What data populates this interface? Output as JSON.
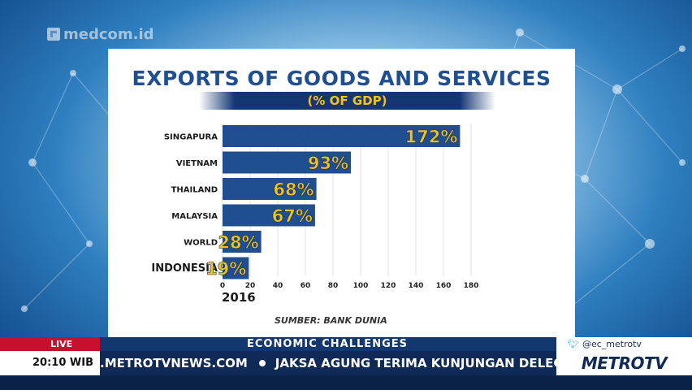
{
  "watermark": "medcom.id",
  "chart_data": {
    "type": "bar",
    "orientation": "horizontal",
    "title": "EXPORTS OF GOODS AND SERVICES",
    "subtitle": "(% OF GDP)",
    "categories": [
      "SINGAPURA",
      "VIETNAM",
      "THAILAND",
      "MALAYSIA",
      "WORLD",
      "INDONESIA"
    ],
    "values": [
      172,
      93,
      68,
      67,
      28,
      19
    ],
    "value_labels": [
      "172%",
      "93%",
      "68%",
      "67%",
      "28%",
      "19%"
    ],
    "xlim": [
      0,
      180
    ],
    "xticks": [
      "0",
      "20",
      "40",
      "60",
      "80",
      "100",
      "120",
      "140",
      "160",
      "180"
    ],
    "xlabel": "2016",
    "source": "SUMBER: BANK DUNIA",
    "bar_color": "#1f4f91",
    "label_color": "#f3c21d"
  },
  "ticker": {
    "live": "LIVE",
    "segment": "ECONOMIC CHALLENGES",
    "twitter": "@ec_metrotv",
    "time": "20:10 WIB",
    "site": ".METROTVNEWS.COM",
    "headline": "JAKSA AGUNG TERIMA KUNJUNGAN DELEGASI H",
    "brand": "METROTV"
  }
}
